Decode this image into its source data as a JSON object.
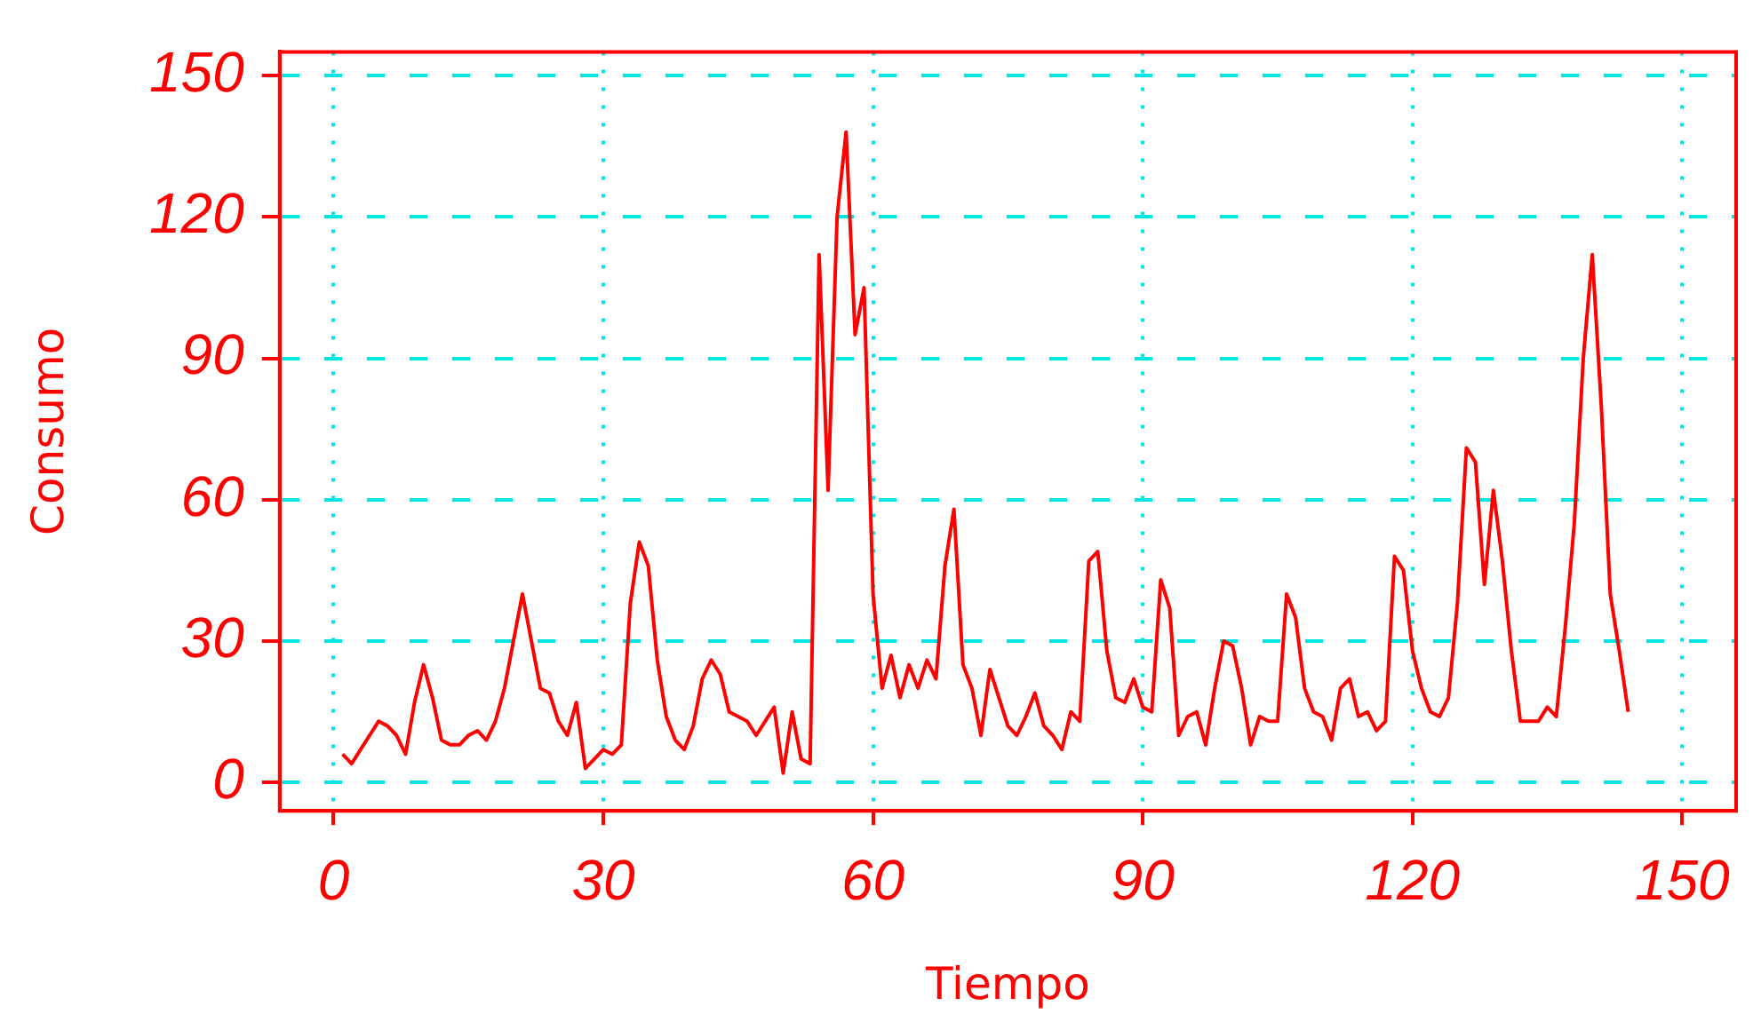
{
  "chart_data": {
    "type": "line",
    "xlabel": "Tiempo",
    "ylabel": "Consumo",
    "x": [
      1,
      2,
      3,
      4,
      5,
      6,
      7,
      8,
      9,
      10,
      11,
      12,
      13,
      14,
      15,
      16,
      17,
      18,
      19,
      20,
      21,
      22,
      23,
      24,
      25,
      26,
      27,
      28,
      29,
      30,
      31,
      32,
      33,
      34,
      35,
      36,
      37,
      38,
      39,
      40,
      41,
      42,
      43,
      44,
      45,
      46,
      47,
      48,
      49,
      50,
      51,
      52,
      53,
      54,
      55,
      56,
      57,
      58,
      59,
      60,
      61,
      62,
      63,
      64,
      65,
      66,
      67,
      68,
      69,
      70,
      71,
      72,
      73,
      74,
      75,
      76,
      77,
      78,
      79,
      80,
      81,
      82,
      83,
      84,
      85,
      86,
      87,
      88,
      89,
      90,
      91,
      92,
      93,
      94,
      95,
      96,
      97,
      98,
      99,
      100,
      101,
      102,
      103,
      104,
      105,
      106,
      107,
      108,
      109,
      110,
      111,
      112,
      113,
      114,
      115,
      116,
      117,
      118,
      119,
      120,
      121,
      122,
      123,
      124,
      125,
      126,
      127,
      128,
      129,
      130,
      131,
      132,
      133,
      134,
      135,
      136,
      137,
      138,
      139,
      140,
      141,
      142,
      143,
      144
    ],
    "series": [
      {
        "color": "#ff0000",
        "values": [
          6,
          4,
          7,
          10,
          13,
          12,
          10,
          6,
          17,
          25,
          18,
          9,
          8,
          8,
          10,
          11,
          9,
          13,
          20,
          30,
          40,
          30,
          20,
          19,
          13,
          10,
          17,
          3,
          5,
          7,
          6,
          8,
          38,
          51,
          46,
          26,
          14,
          9,
          7,
          12,
          22,
          26,
          23,
          15,
          14,
          13,
          10,
          13,
          16,
          2,
          15,
          5,
          4,
          112,
          62,
          120,
          138,
          95,
          105,
          40,
          20,
          27,
          18,
          25,
          20,
          26,
          22,
          46,
          58,
          25,
          20,
          10,
          24,
          18,
          12,
          10,
          14,
          19,
          12,
          10,
          7,
          15,
          13,
          47,
          49,
          28,
          18,
          17,
          22,
          16,
          15,
          43,
          37,
          10,
          14,
          15,
          8,
          20,
          30,
          29,
          20,
          8,
          14,
          13,
          13,
          40,
          35,
          20,
          15,
          14,
          9,
          20,
          22,
          14,
          15,
          11,
          13,
          48,
          45,
          28,
          20,
          15,
          14,
          18,
          38,
          71,
          68,
          42,
          62,
          47,
          28,
          13,
          13,
          13,
          16,
          14,
          33,
          55,
          90,
          112,
          80,
          40,
          28,
          15
        ]
      }
    ],
    "xlim": [
      -6,
      156
    ],
    "ylim": [
      -6,
      155
    ],
    "xticks": [
      0,
      30,
      60,
      90,
      120,
      150
    ],
    "yticks": [
      0,
      30,
      60,
      90,
      120,
      150
    ],
    "grid": true,
    "legend": false,
    "marker": "none",
    "line_style": "solid"
  }
}
